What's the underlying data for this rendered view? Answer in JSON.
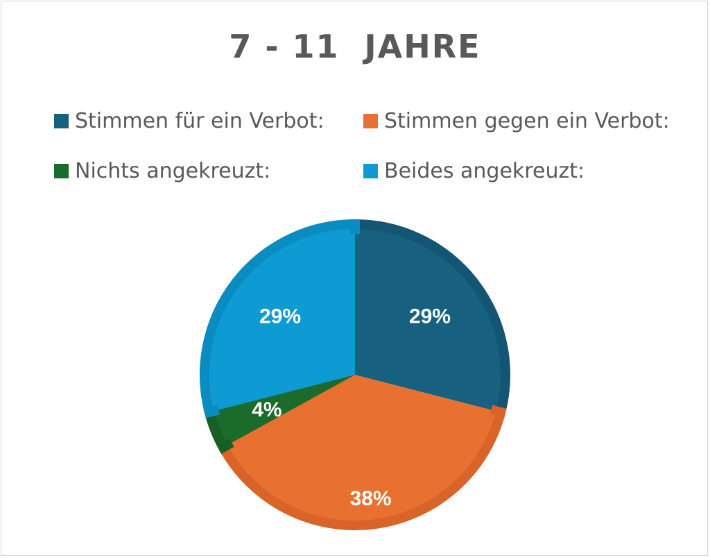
{
  "chart_data": {
    "type": "pie",
    "title": "7 - 11  JAHRE",
    "legend_position": "top",
    "categories": [
      "Stimmen für ein Verbot:",
      "Stimmen gegen ein Verbot:",
      "Nichts angekreuzt:",
      "Beides angekreuzt:"
    ],
    "values": [
      29,
      38,
      4,
      29
    ],
    "data_labels": [
      "29%",
      "38%",
      "4%",
      "29%"
    ],
    "colors": [
      "#17607f",
      "#e87030",
      "#1b6b2a",
      "#0e9bd4"
    ],
    "edge_colors": [
      "#145573",
      "#d9642a",
      "#175f25",
      "#0b8cc0"
    ]
  }
}
